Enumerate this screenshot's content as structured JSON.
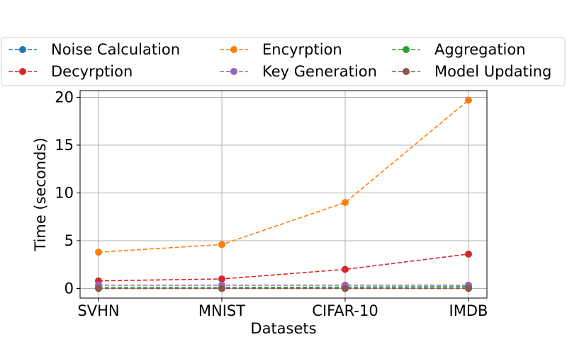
{
  "chart_data": {
    "type": "line",
    "title": "",
    "xlabel": "Datasets",
    "ylabel": "Time (seconds)",
    "categories": [
      "SVHN",
      "MNIST",
      "CIFAR-10",
      "IMDB"
    ],
    "ylim": [
      -1,
      20.7
    ],
    "yticks": [
      0,
      5,
      10,
      15,
      20
    ],
    "grid": true,
    "legend_position": "top",
    "legend_columns": 3,
    "series": [
      {
        "name": "Noise Calculation",
        "color": "#1f77b4",
        "values": [
          0.02,
          0.02,
          0.03,
          0.03
        ]
      },
      {
        "name": "Encyrption",
        "color": "#ff7f0e",
        "values": [
          3.8,
          4.6,
          9.0,
          19.7
        ]
      },
      {
        "name": "Aggregation",
        "color": "#2ca02c",
        "values": [
          0.1,
          0.1,
          0.15,
          0.2
        ]
      },
      {
        "name": "Decyrption",
        "color": "#d62728",
        "values": [
          0.8,
          1.0,
          2.0,
          3.6
        ]
      },
      {
        "name": "Key Generation",
        "color": "#9467bd",
        "values": [
          0.35,
          0.35,
          0.35,
          0.35
        ]
      },
      {
        "name": "Model Updating",
        "color": "#8c564b",
        "values": [
          0.0,
          0.0,
          0.0,
          0.0
        ]
      }
    ]
  }
}
